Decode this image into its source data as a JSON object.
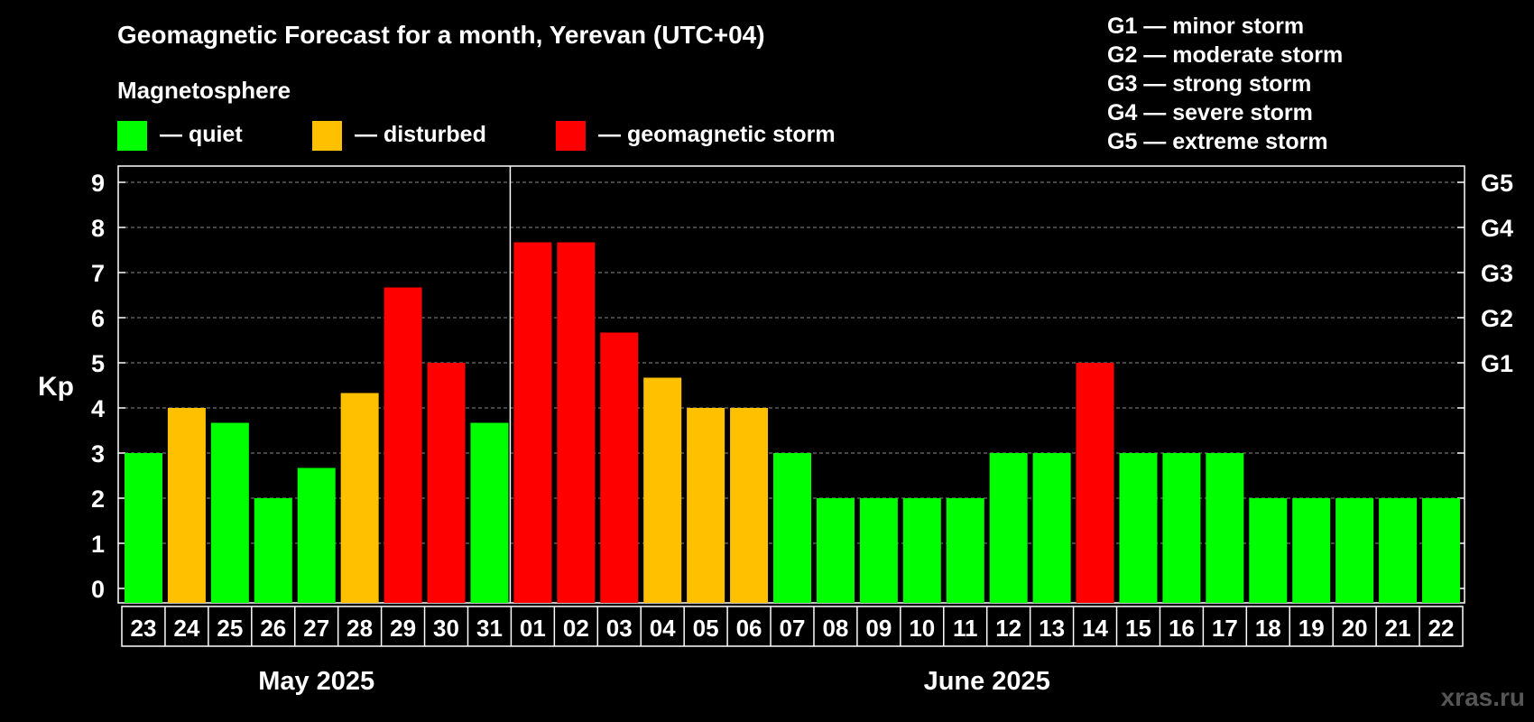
{
  "chart_data": {
    "type": "bar",
    "title": "Geomagnetic Forecast for a month, Yerevan (UTC+04)",
    "ylabel": "Kp",
    "ylim": [
      0,
      9
    ],
    "yticks": [
      0,
      1,
      2,
      3,
      4,
      5,
      6,
      7,
      8,
      9
    ],
    "right_axis_labels": [
      {
        "kp": 5,
        "label": "G1"
      },
      {
        "kp": 6,
        "label": "G2"
      },
      {
        "kp": 7,
        "label": "G3"
      },
      {
        "kp": 8,
        "label": "G4"
      },
      {
        "kp": 9,
        "label": "G5"
      }
    ],
    "categories": [
      "23",
      "24",
      "25",
      "26",
      "27",
      "28",
      "29",
      "30",
      "31",
      "01",
      "02",
      "03",
      "04",
      "05",
      "06",
      "07",
      "08",
      "09",
      "10",
      "11",
      "12",
      "13",
      "14",
      "15",
      "16",
      "17",
      "18",
      "19",
      "20",
      "21",
      "22"
    ],
    "values": [
      3,
      4,
      3.67,
      2,
      2.67,
      4.33,
      6.67,
      5,
      3.67,
      7.67,
      7.67,
      5.67,
      4.67,
      4,
      4,
      3,
      2,
      2,
      2,
      2,
      3,
      3,
      5,
      3,
      3,
      3,
      2,
      2,
      2,
      2,
      2
    ],
    "status": [
      "quiet",
      "disturbed",
      "quiet",
      "quiet",
      "quiet",
      "disturbed",
      "storm",
      "storm",
      "quiet",
      "storm",
      "storm",
      "storm",
      "disturbed",
      "disturbed",
      "disturbed",
      "quiet",
      "quiet",
      "quiet",
      "quiet",
      "quiet",
      "quiet",
      "quiet",
      "storm",
      "quiet",
      "quiet",
      "quiet",
      "quiet",
      "quiet",
      "quiet",
      "quiet",
      "quiet"
    ],
    "months": [
      {
        "label": "May 2025",
        "start": 0,
        "end": 8
      },
      {
        "label": "June 2025",
        "start": 9,
        "end": 30
      }
    ],
    "grid": true
  },
  "legend": {
    "heading": "Magnetosphere",
    "items": [
      {
        "key": "quiet",
        "label": "— quiet",
        "color": "#00ff00"
      },
      {
        "key": "disturbed",
        "label": "— disturbed",
        "color": "#ffc000"
      },
      {
        "key": "storm",
        "label": "— geomagnetic storm",
        "color": "#ff0000"
      }
    ]
  },
  "storm_scale": [
    "G1 — minor storm",
    "G2 — moderate storm",
    "G3 — strong storm",
    "G4 — severe storm",
    "G5 — extreme storm"
  ],
  "watermark": "xras.ru"
}
